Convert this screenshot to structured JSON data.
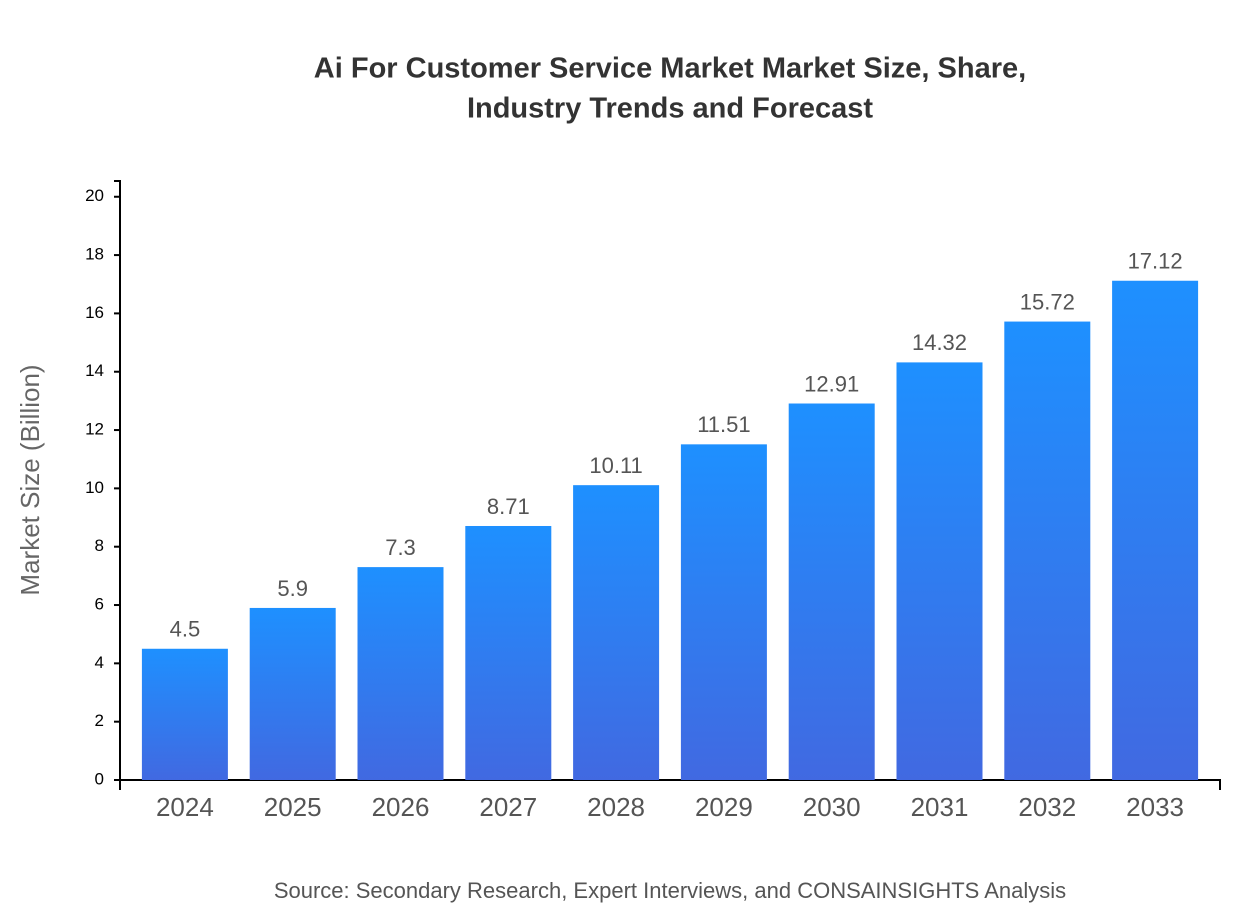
{
  "chart_data": {
    "type": "bar",
    "title": [
      "Ai For Customer Service Market Market Size, Share,",
      "Industry Trends and Forecast"
    ],
    "y_label": "Market Size (Billion)",
    "source": "Source: Secondary Research, Expert Interviews, and CONSAINSIGHTS Analysis",
    "categories": [
      "2024",
      "2025",
      "2026",
      "2027",
      "2028",
      "2029",
      "2030",
      "2031",
      "2032",
      "2033"
    ],
    "values": [
      4.5,
      5.9,
      7.3,
      8.71,
      10.11,
      11.51,
      12.91,
      14.32,
      15.72,
      17.12
    ],
    "color": [
      "#1e90ff",
      "#4169e1"
    ],
    "ylim": [
      0,
      20.54
    ],
    "yticks": [
      0,
      2,
      4,
      6,
      8,
      10,
      12,
      14,
      16,
      18,
      20
    ]
  }
}
